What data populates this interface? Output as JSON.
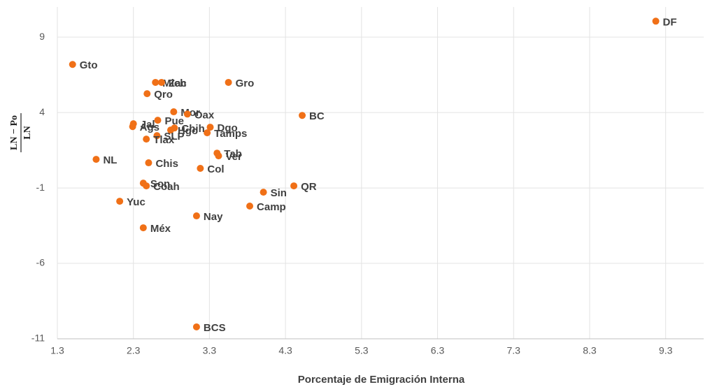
{
  "chart_data": {
    "type": "scatter",
    "x_label": "Porcentaje de Emigración Interna",
    "y_label_numerator": "LN − Po",
    "y_label_denominator": "LN",
    "x": [
      9.17,
      1.5,
      2.59,
      2.67,
      3.55,
      2.48,
      2.83,
      3.01,
      4.52,
      2.62,
      2.3,
      2.29,
      2.84,
      2.79,
      3.31,
      3.27,
      2.61,
      2.47,
      3.4,
      3.42,
      1.81,
      2.5,
      3.18,
      2.43,
      2.47,
      4.41,
      4.01,
      2.12,
      3.83,
      3.13,
      2.43,
      3.13
    ],
    "values": [
      10.06,
      7.19,
      6.0,
      6.0,
      6.0,
      5.25,
      4.05,
      3.9,
      3.81,
      3.49,
      3.26,
      3.07,
      2.98,
      2.84,
      3.03,
      2.66,
      2.47,
      2.24,
      1.31,
      1.13,
      0.9,
      0.67,
      0.3,
      -0.68,
      -0.86,
      -0.86,
      -1.28,
      -1.88,
      -2.2,
      -2.85,
      -3.64,
      -10.21
    ],
    "point_labels": [
      "DF",
      "Gto",
      "Mich",
      "Zac",
      "Gro",
      "Qro",
      "Mor",
      "Oax",
      "BC",
      "Pue",
      "Jal",
      "Ags",
      "Chih",
      "Hgo",
      "Dgo",
      "Tamps",
      "SLP",
      "Tlax",
      "Tab",
      "Ver",
      "NL",
      "Chis",
      "Col",
      "Son",
      "Coah",
      "QR",
      "Sin",
      "Yuc",
      "Camp",
      "Nay",
      "Méx",
      "BCS"
    ],
    "color": "#f07017",
    "xlim": [
      1.3,
      9.8
    ],
    "ylim": [
      -11,
      11
    ],
    "xticks": [
      1.3,
      2.3,
      3.3,
      4.3,
      5.3,
      6.3,
      7.3,
      8.3,
      9.3
    ],
    "yticks": [
      -11,
      -6,
      -1,
      4,
      9
    ],
    "grid": true
  }
}
